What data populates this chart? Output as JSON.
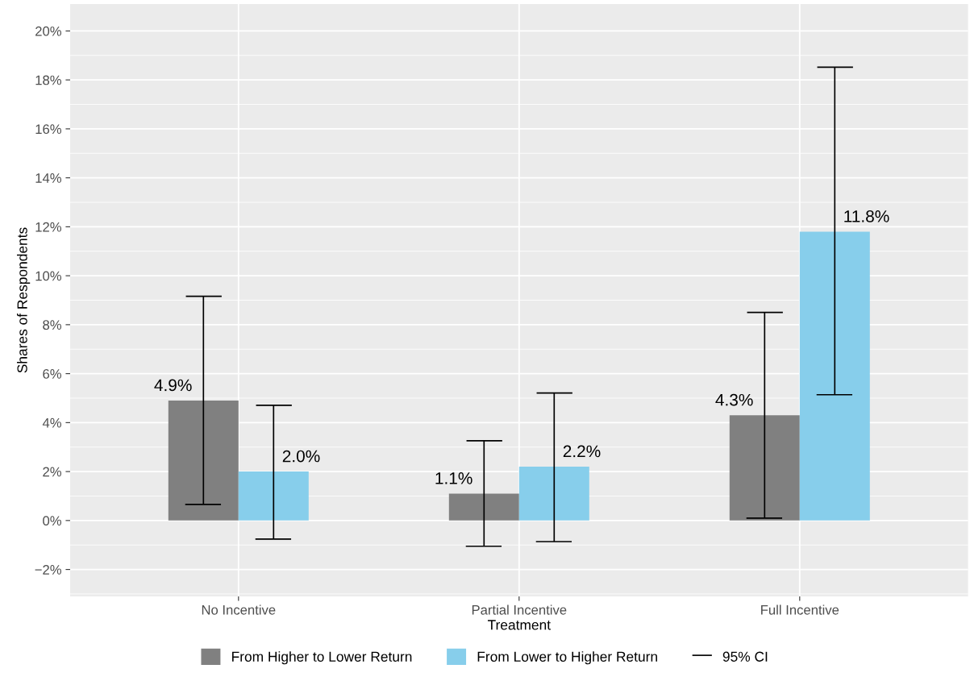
{
  "chart_data": {
    "type": "bar",
    "xlabel": "Treatment",
    "ylabel": "Shares of Respondents",
    "categories": [
      "No Incentive",
      "Partial Incentive",
      "Full Incentive"
    ],
    "series": [
      {
        "name": "From Higher to Lower Return",
        "color": "#808080",
        "values": [
          4.9,
          1.1,
          4.3
        ],
        "value_labels": [
          "4.9%",
          "1.1%",
          "4.3%"
        ],
        "errors": [
          [
            0.66,
            9.16
          ],
          [
            -1.05,
            3.26
          ],
          [
            0.1,
            8.5
          ]
        ]
      },
      {
        "name": "From Lower to Higher Return",
        "color": "#87ceeb",
        "values": [
          2.0,
          2.2,
          11.8
        ],
        "value_labels": [
          "2.0%",
          "2.2%",
          "11.8%"
        ],
        "errors": [
          [
            -0.76,
            4.71
          ],
          [
            -0.86,
            5.21
          ],
          [
            5.14,
            18.52
          ]
        ]
      }
    ],
    "ylim": [
      -3.1,
      21.1
    ],
    "yticks": [
      {
        "value": -2,
        "label": "−2%"
      },
      {
        "value": 0,
        "label": "0%"
      },
      {
        "value": 2,
        "label": "2%"
      },
      {
        "value": 4,
        "label": "4%"
      },
      {
        "value": 6,
        "label": "6%"
      },
      {
        "value": 8,
        "label": "8%"
      },
      {
        "value": 10,
        "label": "10%"
      },
      {
        "value": 12,
        "label": "12%"
      },
      {
        "value": 14,
        "label": "14%"
      },
      {
        "value": 16,
        "label": "16%"
      },
      {
        "value": 18,
        "label": "18%"
      },
      {
        "value": 20,
        "label": "20%"
      }
    ],
    "grid": true,
    "legend": "bottom",
    "annotations": [
      "95% CI"
    ]
  }
}
